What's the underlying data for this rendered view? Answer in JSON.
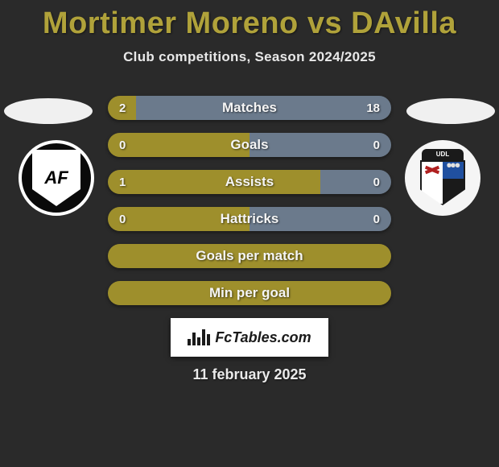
{
  "title": "Mortimer Moreno vs DAvilla",
  "subtitle": "Club competitions, Season 2024/2025",
  "date": "11 february 2025",
  "footer_brand": "FcTables.com",
  "colors": {
    "background": "#2a2a2a",
    "accent_title": "#b0a23a",
    "bar_left": "#9e8f2c",
    "bar_right": "#6b7a8c",
    "bar_full": "#9e8f2c",
    "text": "#f5f5f5"
  },
  "club_left": {
    "name": "Academico Viseu",
    "initials": "AF"
  },
  "club_right": {
    "name": "UD Leiria",
    "initials": "UDL"
  },
  "bars": [
    {
      "label": "Matches",
      "left_val": "2",
      "right_val": "18",
      "left_pct": 10,
      "right_pct": 90,
      "show_vals": true,
      "split": true
    },
    {
      "label": "Goals",
      "left_val": "0",
      "right_val": "0",
      "left_pct": 50,
      "right_pct": 50,
      "show_vals": true,
      "split": true
    },
    {
      "label": "Assists",
      "left_val": "1",
      "right_val": "0",
      "left_pct": 75,
      "right_pct": 25,
      "show_vals": true,
      "split": true
    },
    {
      "label": "Hattricks",
      "left_val": "0",
      "right_val": "0",
      "left_pct": 50,
      "right_pct": 50,
      "show_vals": true,
      "split": true
    },
    {
      "label": "Goals per match",
      "left_val": "",
      "right_val": "",
      "left_pct": 100,
      "right_pct": 0,
      "show_vals": false,
      "split": false
    },
    {
      "label": "Min per goal",
      "left_val": "",
      "right_val": "",
      "left_pct": 100,
      "right_pct": 0,
      "show_vals": false,
      "split": false
    }
  ]
}
